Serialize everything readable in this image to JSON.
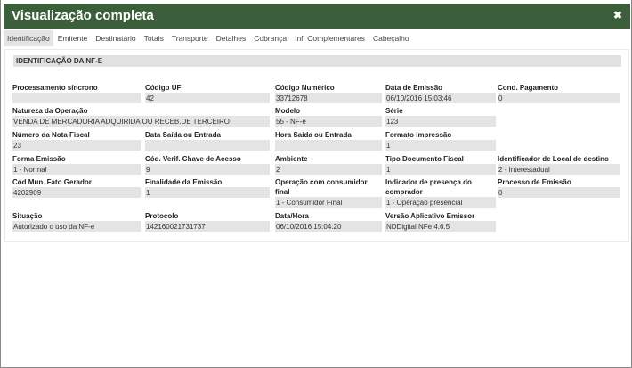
{
  "dialog": {
    "title": "Visualização completa",
    "close_icon": "close-icon"
  },
  "tabs": [
    "Identificação",
    "Emitente",
    "Destinatário",
    "Totais",
    "Transporte",
    "Detalhes",
    "Cobrança",
    "Inf. Complementares",
    "Cabeçalho"
  ],
  "active_tab": "Identificação",
  "section_title": "IDENTIFICAÇÃO DA NF-E",
  "fields": [
    {
      "label": "Processamento síncrono",
      "value": ""
    },
    {
      "label": "Código UF",
      "value": "42"
    },
    {
      "label": "Código Numérico",
      "value": "33712678"
    },
    {
      "label": "Data de Emissão",
      "value": "06/10/2016 15:03:46"
    },
    {
      "label": "Cond. Pagamento",
      "value": "0"
    },
    {
      "label": "Natureza da Operação",
      "value": "VENDA DE MERCADORIA ADQUIRIDA OU RECEB.DE TERCEIRO"
    },
    {
      "label": "Modelo",
      "value": "55 - NF-e"
    },
    {
      "label": "Série",
      "value": "123"
    },
    {
      "label": "Número da Nota Fiscal",
      "value": "23"
    },
    {
      "label": "Data Saída ou Entrada",
      "value": ""
    },
    {
      "label": "Hora Saída ou Entrada",
      "value": ""
    },
    {
      "label": "Formato Impressão",
      "value": "1"
    },
    {
      "label": "Forma Emissão",
      "value": "1 - Normal"
    },
    {
      "label": "Cód. Verif. Chave de Acesso",
      "value": "9"
    },
    {
      "label": "Ambiente",
      "value": "2"
    },
    {
      "label": "Tipo Documento Fiscal",
      "value": "1"
    },
    {
      "label": "Identificador de Local de destino",
      "value": "2 - Interestadual"
    },
    {
      "label": "Cód Mun. Fato Gerador",
      "value": "4202909"
    },
    {
      "label": "Finalidade da Emissão",
      "value": "1"
    },
    {
      "label": "Operação com consumidor final",
      "value": "1 - Consumidor Final"
    },
    {
      "label": "Indicador de presença do comprador",
      "value": "1 - Operação presencial"
    },
    {
      "label": "Processo de Emissão",
      "value": "0"
    },
    {
      "label": "Situação",
      "value": "Autorizado o uso da NF-e"
    },
    {
      "label": "Protocolo",
      "value": "142160021731737"
    },
    {
      "label": "Data/Hora",
      "value": "06/10/2016 15:04:20"
    },
    {
      "label": "Versão Aplicativo Emissor",
      "value": "NDDigital NFe 4.6.5"
    }
  ]
}
